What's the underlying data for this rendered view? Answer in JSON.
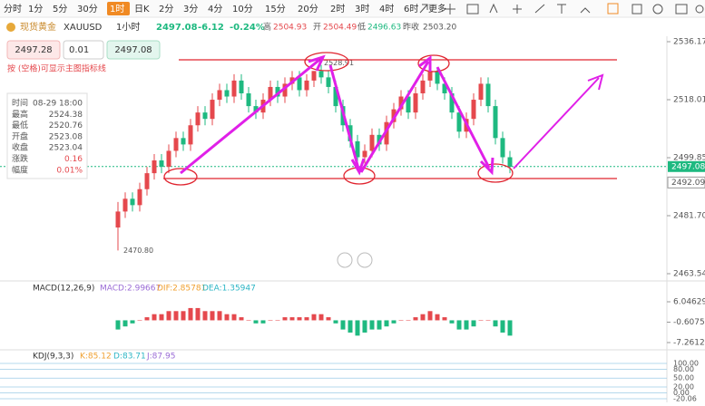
{
  "toolbar": {
    "timeframes": [
      "分时",
      "1分",
      "5分",
      "30分",
      "1时",
      "日K",
      "2分",
      "3分",
      "4分",
      "10分",
      "15分",
      "20分",
      "2时",
      "3时",
      "4时",
      "6时",
      "更多"
    ],
    "active": "1时"
  },
  "symbol": {
    "name": "现货黄金",
    "code": "XAUUSD",
    "interval": "1小时",
    "price": "2497.08",
    "change": "-6.12",
    "change_pct": "-0.24%",
    "high_label": "高",
    "high": "2504.93",
    "open_label": "开",
    "open": "2504.49",
    "low_label": "低",
    "low": "2496.63",
    "prev_label": "昨收",
    "prev": "2503.20"
  },
  "order": {
    "sell": "2497.28",
    "lot": "0.01",
    "buy": "2497.08"
  },
  "hint": "按 (空格)可显示主图指标线",
  "info_box": {
    "rows": [
      [
        "时间",
        "08-29 18:00"
      ],
      [
        "最高",
        "2524.38"
      ],
      [
        "最低",
        "2520.76"
      ],
      [
        "开盘",
        "2523.08"
      ],
      [
        "收盘",
        "2523.04"
      ],
      [
        "涨跌",
        "0.16"
      ],
      [
        "幅度",
        "0.01%"
      ]
    ]
  },
  "main_chart": {
    "type": "candlestick",
    "up_color": "#e5484d",
    "down_color": "#1eb980",
    "ylim": [
      2463.54,
      2536.17
    ],
    "yticks": [
      2536.17,
      2518.01,
      2499.85,
      {
        "value": 2481.7,
        "label": "2481.70"
      },
      2463.54
    ],
    "current_price": 2497.08,
    "level_price": 2492.09,
    "max_label": 2528.91,
    "min_label": {
      "value": 2470.8,
      "label": "2470.80"
    },
    "candles": [
      [
        2478,
        2486,
        2470.8,
        2483
      ],
      [
        2483,
        2489,
        2481,
        2487
      ],
      [
        2487,
        2489,
        2483,
        2485
      ],
      [
        2485,
        2492,
        2483,
        2490
      ],
      [
        2490,
        2497,
        2488,
        2495
      ],
      [
        2495,
        2501,
        2493,
        2499
      ],
      [
        2499,
        2501,
        2495,
        2497
      ],
      [
        2497,
        2504,
        2495,
        2502
      ],
      [
        2502,
        2508,
        2500,
        2506
      ],
      [
        2506,
        2508,
        2502,
        2504
      ],
      [
        2504,
        2512,
        2502,
        2510
      ],
      [
        2510,
        2516,
        2508,
        2514
      ],
      [
        2514,
        2516,
        2510,
        2512
      ],
      [
        2512,
        2520,
        2510,
        2518
      ],
      [
        2518,
        2523,
        2516,
        2521
      ],
      [
        2521,
        2523,
        2517,
        2519
      ],
      [
        2519,
        2526,
        2517,
        2524
      ],
      [
        2524,
        2526,
        2518,
        2520
      ],
      [
        2520,
        2522,
        2514,
        2516
      ],
      [
        2516,
        2518,
        2512,
        2514
      ],
      [
        2514,
        2520,
        2512,
        2518
      ],
      [
        2518,
        2524,
        2516,
        2522
      ],
      [
        2522,
        2524,
        2517,
        2519
      ],
      [
        2519,
        2525,
        2517,
        2523
      ],
      [
        2523,
        2527,
        2521,
        2525
      ],
      [
        2525,
        2527,
        2519,
        2521
      ],
      [
        2521,
        2526,
        2519,
        2524
      ],
      [
        2524,
        2527,
        2522,
        2527
      ],
      [
        2527,
        2528.91,
        2523,
        2525
      ],
      [
        2525,
        2527,
        2520,
        2522
      ],
      [
        2522,
        2524,
        2514,
        2516
      ],
      [
        2516,
        2518,
        2508,
        2510
      ],
      [
        2510,
        2512,
        2503,
        2505
      ],
      [
        2505,
        2507,
        2498,
        2500
      ],
      [
        2500,
        2504,
        2498,
        2502
      ],
      [
        2502,
        2509,
        2500,
        2507
      ],
      [
        2507,
        2509,
        2502,
        2504
      ],
      [
        2504,
        2513,
        2502,
        2511
      ],
      [
        2511,
        2517,
        2509,
        2515
      ],
      [
        2515,
        2521,
        2513,
        2519
      ],
      [
        2519,
        2521,
        2512,
        2514
      ],
      [
        2514,
        2522,
        2512,
        2520
      ],
      [
        2520,
        2526,
        2518,
        2524
      ],
      [
        2524,
        2528,
        2522,
        2527
      ],
      [
        2527,
        2528,
        2521,
        2523
      ],
      [
        2523,
        2525,
        2518,
        2520
      ],
      [
        2520,
        2522,
        2512,
        2514
      ],
      [
        2514,
        2516,
        2506,
        2508
      ],
      [
        2508,
        2514,
        2506,
        2512
      ],
      [
        2512,
        2520,
        2510,
        2518
      ],
      [
        2518,
        2525,
        2516,
        2523
      ],
      [
        2523,
        2525,
        2514,
        2516
      ],
      [
        2516,
        2518,
        2504,
        2506
      ],
      [
        2506,
        2508,
        2498,
        2500
      ],
      [
        2500,
        2502,
        2495,
        2497
      ]
    ]
  },
  "macd": {
    "title": "MACD(12,26,9)",
    "macd": "MACD:2.99667",
    "dif": "DIF:2.85781",
    "dea": "DEA:1.35947",
    "ylim": [
      -7.26129,
      6.04629
    ],
    "yticks": [
      6.04629,
      {
        "value": -0.6075,
        "label": "-0.60750"
      },
      -7.26129
    ],
    "hist": [
      -3,
      -2,
      -1,
      0,
      1,
      2,
      2,
      3,
      3,
      3,
      4,
      4,
      3,
      3,
      3,
      2,
      2,
      1,
      0,
      -1,
      -1,
      0,
      0,
      1,
      1,
      1,
      1,
      2,
      2,
      1,
      -1,
      -3,
      -4,
      -5,
      -4,
      -3,
      -3,
      -2,
      -1,
      0,
      0,
      1,
      2,
      3,
      2,
      1,
      -1,
      -3,
      -3,
      -2,
      0,
      0,
      -2,
      -4,
      -5
    ]
  },
  "kdj": {
    "title": "KDJ(9,3,3)",
    "k": "K:85.12",
    "d": "D:83.71",
    "j": "J:87.95",
    "ylim": [
      -20.06,
      100
    ],
    "yticks": [
      {
        "value": 100,
        "label": "100.00"
      },
      {
        "value": 80,
        "label": "80.00"
      },
      {
        "value": 50,
        "label": "50.00"
      },
      {
        "value": 20,
        "label": "20.00"
      },
      {
        "value": 0,
        "label": "0.00"
      },
      -20.06
    ]
  }
}
